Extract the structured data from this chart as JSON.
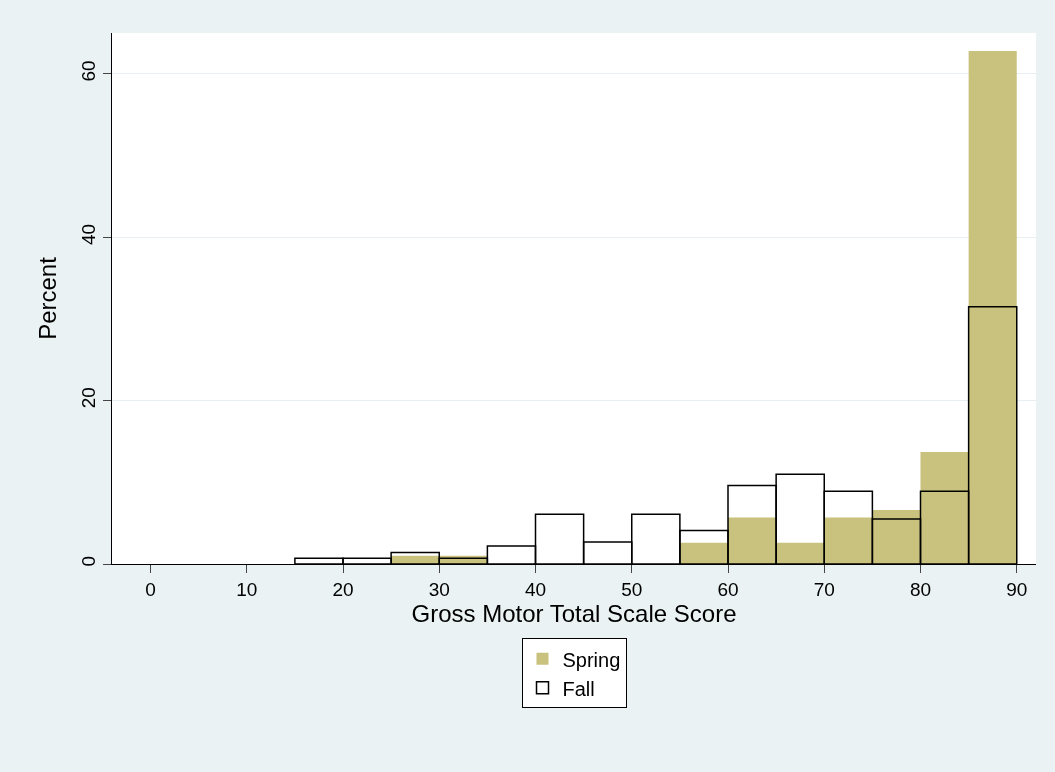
{
  "chart_data": {
    "type": "histogram",
    "xlabel": "Gross Motor Total Scale Score",
    "ylabel": "Percent",
    "bins": [
      15,
      20,
      25,
      30,
      35,
      40,
      45,
      50,
      55,
      60,
      65,
      70,
      75,
      80,
      85,
      90
    ],
    "series": [
      {
        "name": "Spring",
        "color": "#c9c27f",
        "values": [
          0,
          0,
          1.0,
          1.0,
          0,
          0,
          0,
          0,
          2.6,
          5.7,
          2.6,
          5.7,
          6.6,
          13.7,
          62.8
        ]
      },
      {
        "name": "Fall",
        "color": "#000000",
        "values": [
          0.7,
          0.7,
          1.4,
          0.7,
          2.2,
          6.1,
          2.7,
          6.1,
          4.1,
          9.6,
          11.0,
          8.9,
          5.5,
          8.9,
          31.5
        ]
      }
    ],
    "xlim": [
      -4,
      92
    ],
    "xticks": [
      0,
      10,
      20,
      30,
      40,
      50,
      60,
      70,
      80,
      90
    ],
    "ylim": [
      0,
      65
    ],
    "yticks": [
      0,
      20,
      40,
      60
    ],
    "grid": "y",
    "legend": "bottom"
  }
}
